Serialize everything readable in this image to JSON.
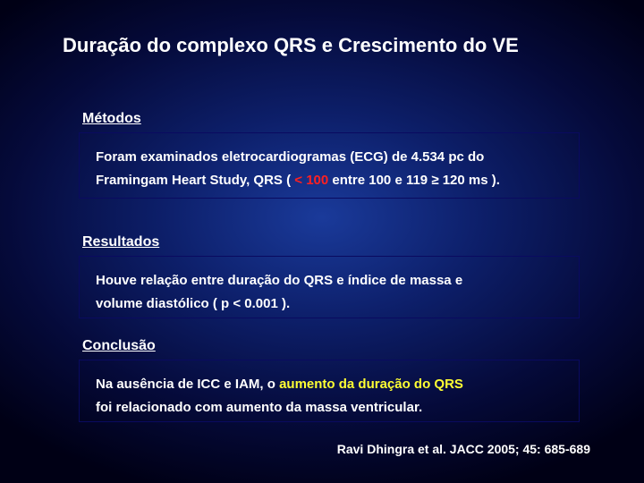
{
  "title": "Duração do complexo QRS e Crescimento do VE",
  "sections": {
    "metodos": {
      "label": "Métodos",
      "line1_a": "Foram examinados eletrocardiogramas (ECG) de 4.534 pc do",
      "line2_a": "Framingam  Heart Study, QRS ( ",
      "line2_red": "< 100",
      "line2_b": "  entre 100 e 119  ≥ 120 ms )."
    },
    "resultados": {
      "label": "Resultados",
      "line1": "Houve relação entre duração do QRS e índice de massa e",
      "line2": "volume diastólico ( p < 0.001 )."
    },
    "conclusao": {
      "label": "Conclusão",
      "line1_a": "Na ausência de ICC e IAM, o ",
      "line1_yellow": "aumento da duração do QRS",
      "line2": "foi relacionado  com aumento da  massa ventricular."
    }
  },
  "citation": "Ravi Dhingra et al. JACC 2005; 45: 685-689",
  "colors": {
    "bg_center": "#1a3a9a",
    "bg_edge": "#000015",
    "border": "#0a0a60",
    "text": "#ffffff",
    "highlight_red": "#ff2020",
    "highlight_yellow": "#ffff33"
  }
}
